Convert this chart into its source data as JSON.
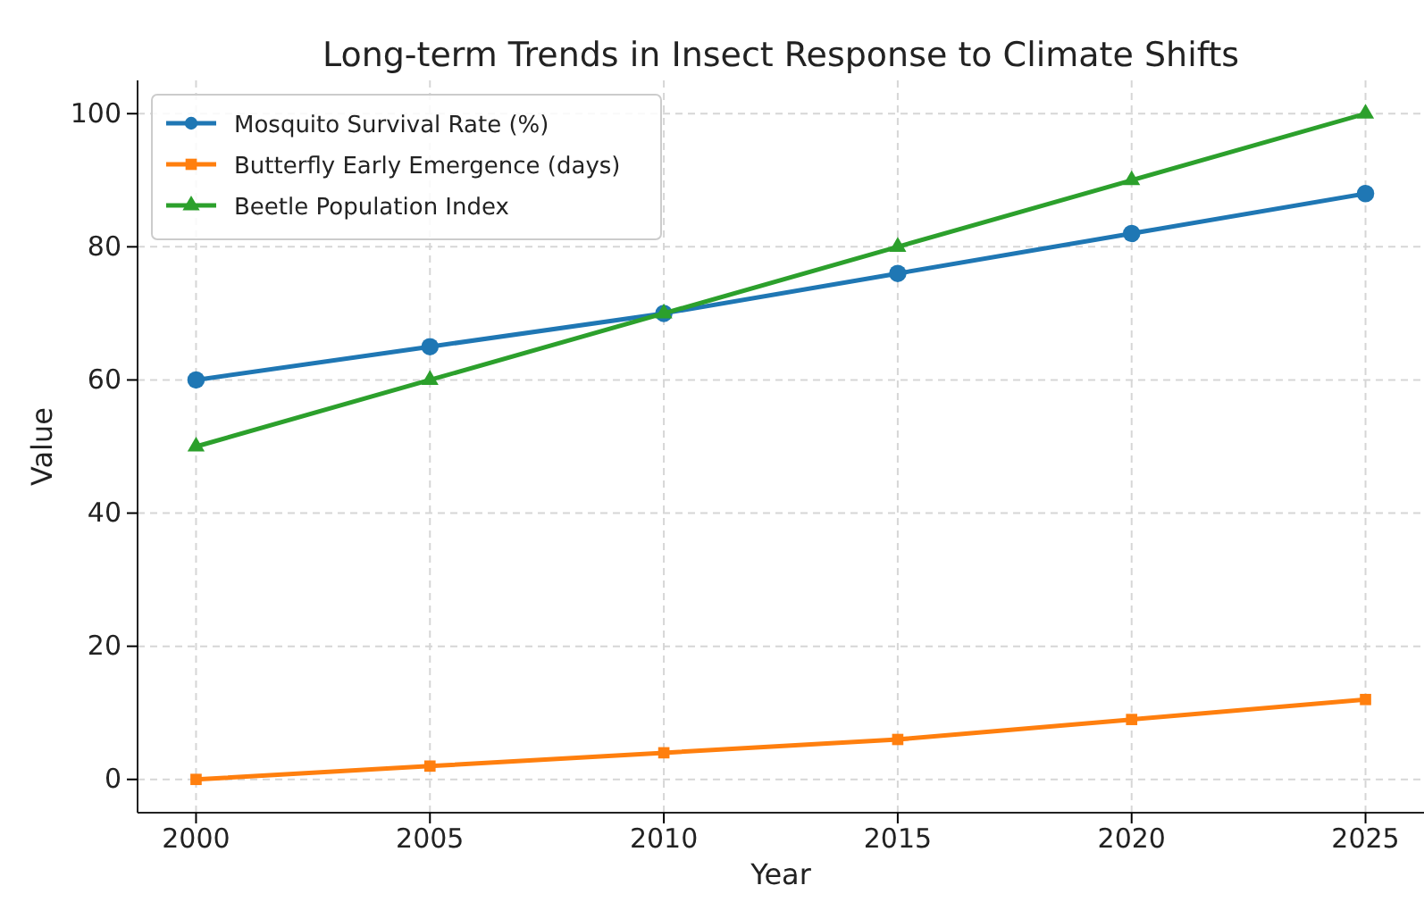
{
  "chart_data": {
    "type": "line",
    "title": "Long-term Trends in Insect Response to Climate Shifts",
    "xlabel": "Year",
    "ylabel": "Value",
    "x": [
      2000,
      2005,
      2010,
      2015,
      2020,
      2025
    ],
    "series": [
      {
        "name": "Mosquito Survival Rate (%)",
        "color": "#1f77b4",
        "marker": "circle",
        "values": [
          60,
          65,
          70,
          76,
          82,
          88
        ]
      },
      {
        "name": "Butterfly Early Emergence (days)",
        "color": "#ff7f0e",
        "marker": "square",
        "values": [
          0,
          2,
          4,
          6,
          9,
          12
        ]
      },
      {
        "name": "Beetle Population Index",
        "color": "#2ca02c",
        "marker": "triangle",
        "values": [
          50,
          60,
          70,
          80,
          90,
          100
        ]
      }
    ],
    "xlim": [
      1998.75,
      2026.25
    ],
    "ylim": [
      -5,
      105
    ],
    "xticks": [
      2000,
      2005,
      2010,
      2015,
      2020,
      2025
    ],
    "yticks": [
      0,
      20,
      40,
      60,
      80,
      100
    ],
    "grid": true,
    "legend": "top left",
    "line_style": "solid"
  }
}
